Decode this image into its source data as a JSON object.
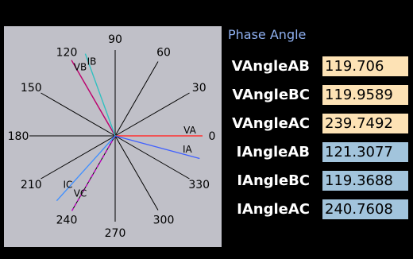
{
  "panel": {
    "title": "Phase Angle"
  },
  "diagram": {
    "degree_ticks": [
      {
        "deg": 0,
        "label": "0"
      },
      {
        "deg": 30,
        "label": "30"
      },
      {
        "deg": 60,
        "label": "60"
      },
      {
        "deg": 90,
        "label": "90"
      },
      {
        "deg": 120,
        "label": "120"
      },
      {
        "deg": 150,
        "label": "150"
      },
      {
        "deg": 180,
        "label": "180"
      },
      {
        "deg": 210,
        "label": "210"
      },
      {
        "deg": 240,
        "label": "240"
      },
      {
        "deg": 270,
        "label": "270"
      },
      {
        "deg": 300,
        "label": "300"
      },
      {
        "deg": 330,
        "label": "330"
      }
    ],
    "phasors": [
      {
        "label": "VA",
        "angle": 0,
        "color": "#ff3030",
        "style": "solid"
      },
      {
        "label": "VB",
        "angle": 120,
        "color": "#c00070",
        "style": "solid"
      },
      {
        "label": "VC",
        "angle": 240,
        "color": "#c000c0",
        "style": "dashed"
      },
      {
        "label": "IA",
        "angle": 345,
        "color": "#4060ff",
        "style": "solid"
      },
      {
        "label": "IB",
        "angle": 110,
        "color": "#30c0c0",
        "style": "solid"
      },
      {
        "label": "IC",
        "angle": 228,
        "color": "#4090ff",
        "style": "solid"
      }
    ]
  },
  "rows": [
    {
      "label": "VAngleAB",
      "value": "119.706",
      "color": "#fde2b5"
    },
    {
      "label": "VAngleBC",
      "value": "119.9589",
      "color": "#fde2b5"
    },
    {
      "label": "VAngleAC",
      "value": "239.7492",
      "color": "#fde2b5"
    },
    {
      "label": "IAngleAB",
      "value": "121.3077",
      "color": "#a2c4dc"
    },
    {
      "label": "IAngleBC",
      "value": "119.3688",
      "color": "#a2c4dc"
    },
    {
      "label": "IAngleAC",
      "value": "240.7608",
      "color": "#a2c4dc"
    }
  ]
}
